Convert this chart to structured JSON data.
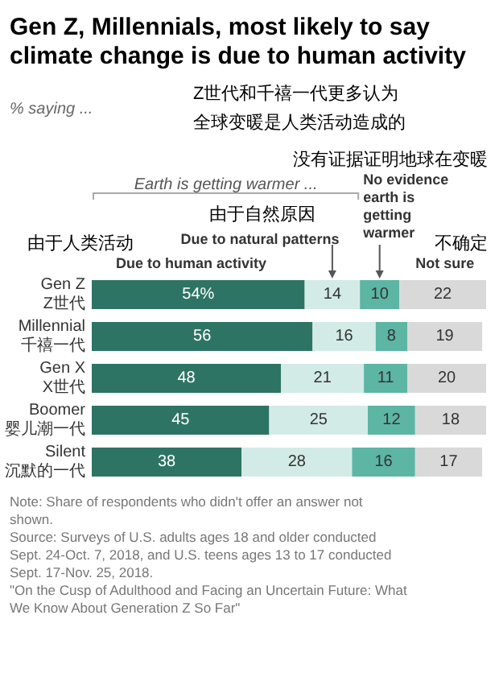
{
  "chart_data": {
    "type": "bar",
    "orientation": "horizontal",
    "stacked": true,
    "title": "Gen Z, Millennials, most likely to say climate change is due to human activity",
    "subtitle": "% saying ...",
    "categories": [
      "Gen Z\nZ世代",
      "Millennial\n千禧一代",
      "Gen X\nX世代",
      "Boomer\n婴儿潮一代",
      "Silent\n沉默的一代"
    ],
    "series": [
      {
        "name": "Due to human activity",
        "color": "#2e7465",
        "values": [
          54,
          56,
          48,
          45,
          38
        ],
        "value_labels": [
          "54%",
          "56",
          "48",
          "45",
          "38"
        ]
      },
      {
        "name": "Due to natural patterns",
        "color": "#d3ebe6",
        "values": [
          14,
          16,
          21,
          25,
          28
        ],
        "value_labels": [
          "14",
          "16",
          "21",
          "25",
          "28"
        ]
      },
      {
        "name": "No evidence earth is getting warmer",
        "color": "#5db5a4",
        "values": [
          10,
          8,
          11,
          12,
          16
        ],
        "value_labels": [
          "10",
          "8",
          "11",
          "12",
          "16"
        ]
      },
      {
        "name": "Not sure",
        "color": "#d9d9d9",
        "values": [
          22,
          19,
          20,
          18,
          17
        ],
        "value_labels": [
          "22",
          "19",
          "20",
          "18",
          "17"
        ]
      }
    ],
    "xlim": [
      0,
      100
    ],
    "tick_labels": "y",
    "grid": false,
    "legend": false,
    "annotations": [
      "Z世代和千禧一代更多认为",
      "全球变暖是人类活动造成的",
      "没有证据证明地球在变暖",
      "Earth is getting warmer ...",
      "由于自然原因",
      "由于人类活动",
      "不确定",
      "Note: Share of respondents who didn't offer an answer not shown.",
      "Source: Surveys of U.S. adults ages 18 and older conducted Sept. 24-Oct. 7, 2018, and U.S. teens ages 13 to 17 conducted Sept. 17-Nov. 25, 2018.",
      "\"On the Cusp of Adulthood and Facing an Uncertain Future: What We Know About Generation Z So Far\""
    ]
  }
}
